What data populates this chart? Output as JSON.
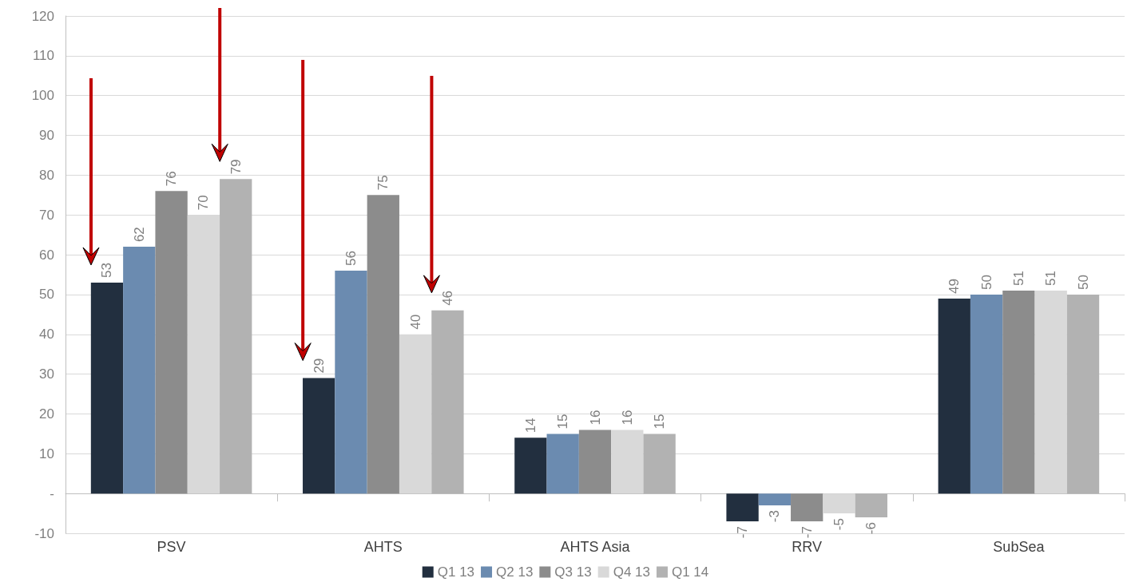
{
  "chart_data": {
    "type": "bar",
    "categories": [
      "PSV",
      "AHTS",
      "AHTS Asia",
      "RRV",
      "SubSea"
    ],
    "series": [
      {
        "name": "Q1 13",
        "color": "#222f3f",
        "values": [
          53,
          29,
          14,
          -7,
          49
        ]
      },
      {
        "name": "Q2 13",
        "color": "#6b8bb0",
        "values": [
          62,
          56,
          15,
          -3,
          50
        ]
      },
      {
        "name": "Q3 13",
        "color": "#8c8c8c",
        "values": [
          76,
          75,
          16,
          -7,
          51
        ]
      },
      {
        "name": "Q4 13",
        "color": "#d9d9d9",
        "values": [
          70,
          40,
          16,
          -5,
          51
        ]
      },
      {
        "name": "Q1 14",
        "color": "#b2b2b2",
        "values": [
          79,
          46,
          15,
          -6,
          50
        ]
      }
    ],
    "ylim": [
      -10,
      120
    ],
    "yticks": [
      -10,
      {
        "value": 0,
        "label": "-"
      },
      10,
      20,
      30,
      40,
      50,
      60,
      70,
      80,
      90,
      100,
      110,
      120
    ],
    "grid": "y",
    "legend": "bottom",
    "data_labels": true
  }
}
